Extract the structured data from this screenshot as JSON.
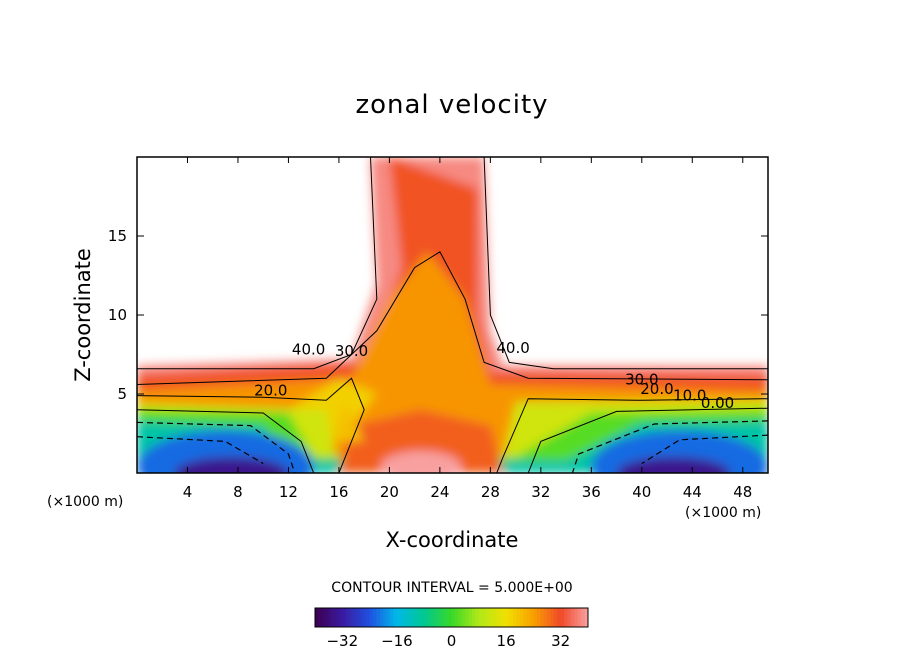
{
  "chart_data": {
    "type": "contour",
    "title": "zonal velocity",
    "xlabel": "X-coordinate",
    "ylabel": "Z-coordinate",
    "x_unit_label": "(×1000 m)",
    "x_unit_label_right": "(×1000 m)",
    "xlim": [
      0,
      50
    ],
    "ylim": [
      0,
      20
    ],
    "x_ticks": [
      4,
      8,
      12,
      16,
      20,
      24,
      28,
      32,
      36,
      40,
      44,
      48
    ],
    "y_ticks": [
      5,
      10,
      15
    ],
    "contour_interval_text": "CONTOUR INTERVAL = 5.000E+00",
    "contour_labels": [
      {
        "text": "40.0",
        "x": 13.6,
        "z": 7.5
      },
      {
        "text": "30.0",
        "x": 17.0,
        "z": 7.4
      },
      {
        "text": "20.0",
        "x": 10.6,
        "z": 4.9
      },
      {
        "text": "40.0",
        "x": 29.8,
        "z": 7.6
      },
      {
        "text": "30.0",
        "x": 40.0,
        "z": 5.6
      },
      {
        "text": "20.0",
        "x": 41.2,
        "z": 5.0
      },
      {
        "text": "10.0",
        "x": 43.8,
        "z": 4.6
      },
      {
        "text": "0.00",
        "x": 46.0,
        "z": 4.1
      }
    ],
    "colorbar": {
      "range": [
        -40,
        40
      ],
      "tick_values": [
        -32,
        -16,
        0,
        16,
        32
      ],
      "tick_labels": [
        "−32",
        "−16",
        "0",
        "16",
        "32"
      ]
    }
  }
}
